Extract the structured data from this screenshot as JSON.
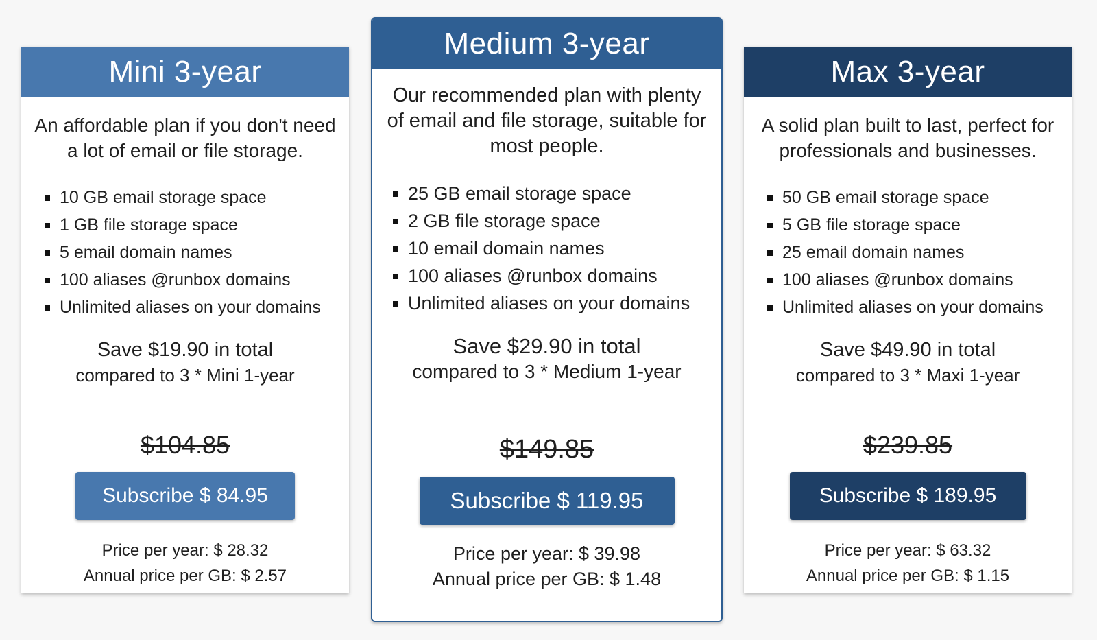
{
  "plans": [
    {
      "title": "Mini 3-year",
      "description": "An affordable plan if you don't need a lot of email or file storage.",
      "features": [
        "10 GB email storage space",
        "1 GB file storage space",
        "5 email domain names",
        "100 aliases @runbox domains",
        "Unlimited aliases on your domains"
      ],
      "save_line": "Save $19.90 in total",
      "compare_line": "compared to 3 * Mini 1-year",
      "old_price": "$104.85",
      "subscribe_label": "Subscribe $ 84.95",
      "price_per_year": "Price per year: $ 28.32",
      "annual_price_per_gb": "Annual price per GB: $ 2.57"
    },
    {
      "title": "Medium 3-year",
      "description": "Our recommended plan with plenty of email and file storage, suitable for most people.",
      "features": [
        "25 GB email storage space",
        "2 GB file storage space",
        "10 email domain names",
        "100 aliases @runbox domains",
        "Unlimited aliases on your domains"
      ],
      "save_line": "Save $29.90 in total",
      "compare_line": "compared to 3 * Medium 1-year",
      "old_price": "$149.85",
      "subscribe_label": "Subscribe $ 119.95",
      "price_per_year": "Price per year: $ 39.98",
      "annual_price_per_gb": "Annual price per GB: $ 1.48"
    },
    {
      "title": "Max 3-year",
      "description": "A solid plan built to last, perfect for professionals and businesses.",
      "features": [
        "50 GB email storage space",
        "5 GB file storage space",
        "25 email domain names",
        "100 aliases @runbox domains",
        "Unlimited aliases on your domains"
      ],
      "save_line": "Save $49.90 in total",
      "compare_line": "compared to 3 * Maxi 1-year",
      "old_price": "$239.85",
      "subscribe_label": "Subscribe $ 189.95",
      "price_per_year": "Price per year: $ 63.32",
      "annual_price_per_gb": "Annual price per GB: $ 1.15"
    }
  ],
  "colors": {
    "mini_header": "#4878ae",
    "medium_header": "#2f5f93",
    "max_header": "#1e3f66",
    "page_background": "#f7f7f7"
  }
}
